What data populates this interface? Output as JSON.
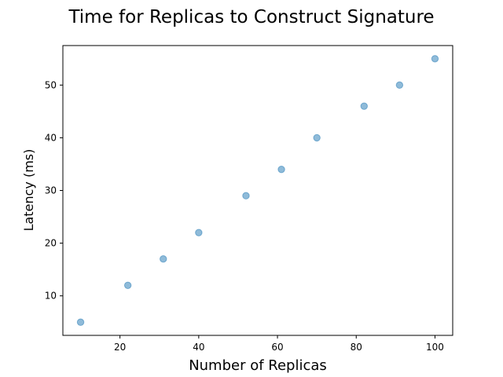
{
  "chart_data": {
    "type": "scatter",
    "title": "Time for Replicas to Construct Signature",
    "xlabel": "Number of Replicas",
    "ylabel": "Latency (ms)",
    "series": [
      {
        "name": "Latency",
        "x": [
          10,
          22,
          31,
          40,
          52,
          61,
          70,
          82,
          91,
          100
        ],
        "y": [
          5,
          12,
          17,
          22,
          29,
          34,
          40,
          46,
          50,
          55
        ]
      }
    ],
    "xlim": [
      5.5,
      104.5
    ],
    "ylim": [
      2.5,
      57.5
    ],
    "xticks": [
      20,
      40,
      60,
      80,
      100
    ],
    "yticks": [
      10,
      20,
      30,
      40,
      50
    ],
    "grid": false,
    "legend": false,
    "marker_color": "#1f77b4",
    "marker_alpha": 0.5
  }
}
